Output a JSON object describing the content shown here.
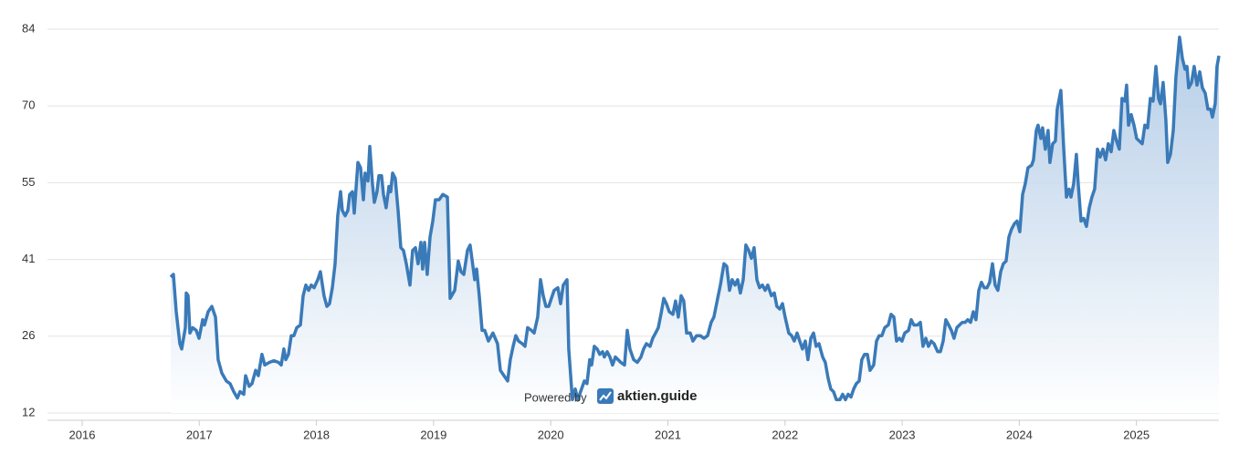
{
  "chart_data": {
    "type": "line",
    "color": "#3a7ab8",
    "grid": true,
    "xlim": [
      2015.704,
      2025.704
    ],
    "xticks": [
      2016,
      2017,
      2018,
      2019,
      2020,
      2021,
      2022,
      2023,
      2024,
      2025
    ],
    "ylim": [
      12,
      84
    ],
    "yticks": [
      12,
      {
        "value": 26.4,
        "label": "26"
      },
      {
        "value": 40.8,
        "label": "41"
      },
      {
        "value": 55.2,
        "label": "55"
      },
      {
        "value": 69.6,
        "label": "70"
      },
      84
    ],
    "watermark": {
      "prefix": "Powered by",
      "brand": "aktien.guide"
    },
    "x": [
      2016.756,
      2016.779,
      2016.803,
      2016.834,
      2016.85,
      2016.881,
      2016.889,
      2016.904,
      2016.92,
      2016.943,
      2016.974,
      2016.998,
      2017.029,
      2017.044,
      2017.076,
      2017.107,
      2017.138,
      2017.161,
      2017.192,
      2017.231,
      2017.263,
      2017.294,
      2017.325,
      2017.348,
      2017.38,
      2017.395,
      2017.426,
      2017.45,
      2017.481,
      2017.504,
      2017.535,
      2017.559,
      2017.598,
      2017.637,
      2017.676,
      2017.699,
      2017.722,
      2017.738,
      2017.761,
      2017.785,
      2017.808,
      2017.832,
      2017.863,
      2017.886,
      2017.91,
      2017.933,
      2017.956,
      2017.98,
      2018.011,
      2018.034,
      2018.065,
      2018.089,
      2018.112,
      2018.136,
      2018.159,
      2018.182,
      2018.206,
      2018.221,
      2018.245,
      2018.268,
      2018.284,
      2018.307,
      2018.323,
      2018.354,
      2018.377,
      2018.401,
      2018.416,
      2018.44,
      2018.455,
      2018.478,
      2018.494,
      2018.517,
      2018.533,
      2018.556,
      2018.572,
      2018.595,
      2018.619,
      2018.634,
      2018.65,
      2018.673,
      2018.697,
      2018.72,
      2018.743,
      2018.767,
      2018.798,
      2018.821,
      2018.845,
      2018.868,
      2018.892,
      2018.907,
      2018.923,
      2018.946,
      2018.97,
      2018.993,
      2019.016,
      2019.047,
      2019.079,
      2019.118,
      2019.141,
      2019.18,
      2019.211,
      2019.234,
      2019.258,
      2019.289,
      2019.312,
      2019.336,
      2019.351,
      2019.367,
      2019.39,
      2019.414,
      2019.437,
      2019.468,
      2019.507,
      2019.546,
      2019.57,
      2019.601,
      2019.632,
      2019.655,
      2019.679,
      2019.702,
      2019.725,
      2019.757,
      2019.78,
      2019.803,
      2019.835,
      2019.858,
      2019.889,
      2019.913,
      2019.936,
      2019.959,
      2019.983,
      2020.006,
      2020.029,
      2020.061,
      2020.084,
      2020.107,
      2020.139,
      2020.154,
      2020.185,
      2020.209,
      2020.232,
      2020.255,
      2020.287,
      2020.31,
      2020.333,
      2020.349,
      2020.372,
      2020.396,
      2020.419,
      2020.443,
      2020.458,
      2020.482,
      2020.505,
      2020.528,
      2020.552,
      2020.575,
      2020.598,
      2020.63,
      2020.653,
      2020.676,
      2020.708,
      2020.739,
      2020.77,
      2020.793,
      2020.817,
      2020.848,
      2020.871,
      2020.895,
      2020.918,
      2020.941,
      2020.965,
      2020.988,
      2021.012,
      2021.043,
      2021.066,
      2021.089,
      2021.113,
      2021.136,
      2021.16,
      2021.191,
      2021.214,
      2021.245,
      2021.277,
      2021.308,
      2021.339,
      2021.37,
      2021.393,
      2021.425,
      2021.448,
      2021.479,
      2021.503,
      2021.526,
      2021.549,
      2021.573,
      2021.596,
      2021.619,
      2021.643,
      2021.666,
      2021.69,
      2021.713,
      2021.736,
      2021.76,
      2021.783,
      2021.807,
      2021.83,
      2021.853,
      2021.884,
      2021.908,
      2021.931,
      2021.955,
      2021.978,
      2022.001,
      2022.032,
      2022.056,
      2022.079,
      2022.103,
      2022.126,
      2022.149,
      2022.173,
      2022.196,
      2022.22,
      2022.243,
      2022.266,
      2022.29,
      2022.321,
      2022.344,
      2022.368,
      2022.391,
      2022.414,
      2022.438,
      2022.469,
      2022.492,
      2022.516,
      2022.539,
      2022.563,
      2022.586,
      2022.609,
      2022.633,
      2022.656,
      2022.679,
      2022.703,
      2022.726,
      2022.757,
      2022.781,
      2022.804,
      2022.827,
      2022.851,
      2022.882,
      2022.905,
      2022.929,
      2022.952,
      2022.976,
      2022.999,
      2023.022,
      2023.054,
      2023.077,
      2023.1,
      2023.131,
      2023.155,
      2023.178,
      2023.202,
      2023.225,
      2023.248,
      2023.272,
      2023.303,
      2023.326,
      2023.35,
      2023.373,
      2023.397,
      2023.42,
      2023.443,
      2023.467,
      2023.49,
      2023.513,
      2023.537,
      2023.56,
      2023.584,
      2023.607,
      2023.63,
      2023.654,
      2023.677,
      2023.7,
      2023.724,
      2023.747,
      2023.771,
      2023.794,
      2023.817,
      2023.841,
      2023.864,
      2023.887,
      2023.911,
      2023.934,
      2023.958,
      2023.981,
      2024.004,
      2024.028,
      2024.051,
      2024.074,
      2024.106,
      2024.121,
      2024.145,
      2024.16,
      2024.184,
      2024.199,
      2024.222,
      2024.246,
      2024.261,
      2024.285,
      2024.308,
      2024.324,
      2024.355,
      2024.378,
      2024.402,
      2024.425,
      2024.441,
      2024.464,
      2024.487,
      2024.503,
      2024.527,
      2024.55,
      2024.573,
      2024.597,
      2024.62,
      2024.643,
      2024.667,
      2024.69,
      2024.714,
      2024.737,
      2024.76,
      2024.784,
      2024.807,
      2024.83,
      2024.854,
      2024.877,
      2024.901,
      2024.916,
      2024.932,
      2024.955,
      2024.979,
      2025.002,
      2025.025,
      2025.049,
      2025.072,
      2025.095,
      2025.119,
      2025.142,
      2025.166,
      2025.189,
      2025.205,
      2025.228,
      2025.251,
      2025.267,
      2025.29,
      2025.314,
      2025.337,
      2025.368,
      2025.392,
      2025.415,
      2025.431,
      2025.446,
      2025.47,
      2025.493,
      2025.517,
      2025.54,
      2025.563,
      2025.587,
      2025.61,
      2025.633,
      2025.649,
      2025.672,
      2025.688,
      2025.704
    ],
    "values": [
      37.5,
      38,
      31,
      25,
      24,
      28,
      34.5,
      34,
      27,
      28,
      27.5,
      26,
      29.5,
      28.5,
      31,
      32,
      30,
      22,
      19.5,
      18,
      17.5,
      16,
      14.8,
      16,
      15.5,
      19,
      17,
      17.5,
      20,
      19,
      23,
      21,
      21.5,
      21.8,
      21.5,
      21,
      24,
      22,
      23,
      26.5,
      26.5,
      28,
      28.5,
      34,
      36,
      35,
      36,
      35.5,
      37,
      38.5,
      34,
      32,
      32.5,
      35.5,
      40,
      49,
      53.5,
      50,
      49,
      50,
      53,
      53.5,
      49.5,
      59,
      58,
      52,
      57,
      55.5,
      62,
      55,
      51.5,
      53.5,
      56.5,
      56.5,
      53,
      50.5,
      54.5,
      53.5,
      57,
      56,
      50,
      43,
      42.5,
      40,
      36,
      42.5,
      43,
      40,
      44,
      39,
      44,
      38,
      45,
      48,
      52,
      52,
      53,
      52.5,
      33.5,
      35,
      40.5,
      38.5,
      38,
      42.5,
      43.5,
      39.5,
      37,
      39,
      34,
      27.5,
      27.5,
      25.5,
      27,
      25,
      20,
      19,
      18,
      22,
      24.5,
      26.5,
      25.5,
      25,
      24.5,
      28,
      27.5,
      27,
      30,
      37,
      34,
      32,
      32,
      33.5,
      35,
      35.5,
      32.5,
      36,
      37,
      24,
      14.5,
      16.5,
      14.5,
      16,
      18,
      17.5,
      22,
      21,
      24.5,
      24,
      23,
      23.5,
      22.5,
      23.5,
      22.5,
      21,
      22.5,
      22,
      21.5,
      21,
      27.5,
      24,
      22,
      21.5,
      22.5,
      24,
      25,
      24.5,
      26,
      27,
      28,
      30.5,
      33.5,
      32.5,
      31,
      30.5,
      33,
      30,
      34,
      33,
      27,
      27,
      25.5,
      26.5,
      26.5,
      26,
      26.5,
      29,
      30,
      33.5,
      36,
      40,
      39.5,
      35,
      37,
      36,
      37,
      34.5,
      37,
      43.5,
      42.5,
      41,
      43,
      37,
      35.5,
      36,
      35,
      36,
      34,
      34.5,
      32,
      31.5,
      32.5,
      30,
      27,
      26.5,
      25.5,
      27,
      25.5,
      24,
      25.5,
      22,
      26,
      27,
      24.5,
      25,
      22.5,
      21.5,
      18.5,
      16.5,
      16,
      14.5,
      14.5,
      15.5,
      14.5,
      15.5,
      15,
      16.5,
      17.5,
      18,
      22,
      23,
      23,
      20,
      21,
      25.5,
      26.5,
      26.5,
      28,
      28.5,
      30.5,
      30,
      25.5,
      26,
      25.5,
      27,
      27.5,
      29.5,
      28.5,
      28.5,
      29,
      24.5,
      26,
      24.5,
      25.5,
      25,
      23.5,
      23.5,
      25.5,
      29.5,
      28.5,
      27.5,
      26,
      28,
      28.5,
      29,
      29,
      29.5,
      29,
      31,
      29.5,
      35,
      36.5,
      35.5,
      35.5,
      36.5,
      40,
      36,
      35,
      38.5,
      40,
      40.5,
      45,
      46.5,
      47.5,
      48,
      46,
      53,
      55,
      58,
      58.5,
      59.5,
      65,
      66,
      63.5,
      65.5,
      61.5,
      65,
      59,
      62.5,
      63,
      69,
      72.5,
      62,
      52.5,
      54,
      52.5,
      55,
      60.5,
      55,
      48,
      48.5,
      47,
      50.5,
      52.5,
      54,
      61.5,
      60,
      61.5,
      59.5,
      62.5,
      61,
      65,
      63,
      61.5,
      71,
      70.5,
      73.5,
      66,
      68,
      66,
      63.5,
      63,
      62.5,
      66,
      65.5,
      71,
      70.5,
      77,
      71,
      70,
      74,
      67,
      59,
      60.5,
      65,
      75,
      82.5,
      78.5,
      76.5,
      77,
      73,
      74,
      77,
      73.5,
      76,
      73,
      72,
      69,
      69,
      67.5,
      70,
      77,
      79
    ]
  }
}
